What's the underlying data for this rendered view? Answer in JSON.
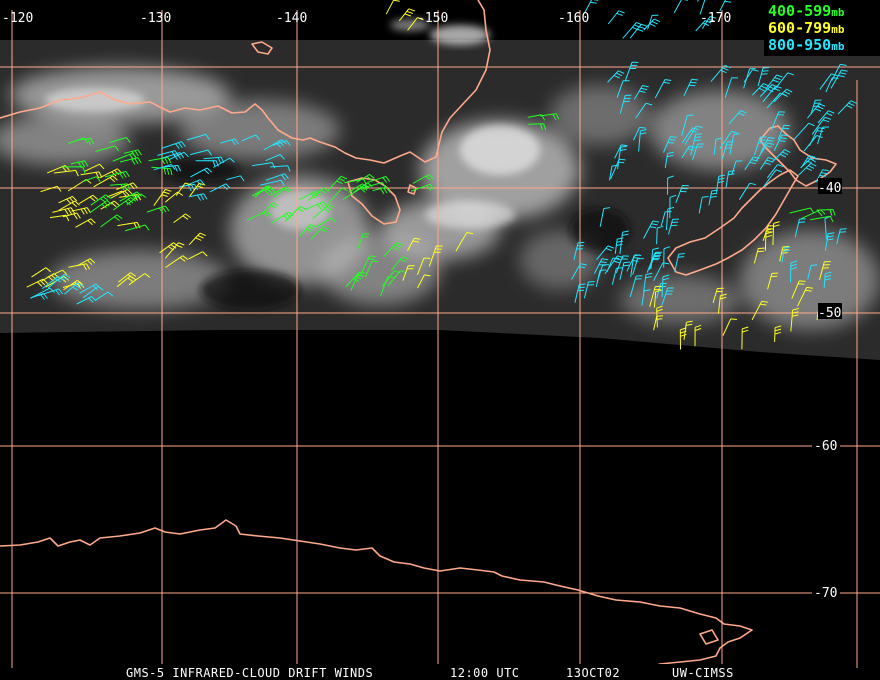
{
  "map": {
    "grid_color": "#ffa98a",
    "coast_color": "#ffa98a",
    "longitude_labels": [
      "-120",
      "-130",
      "-140",
      "-150",
      "-160",
      "-170"
    ],
    "latitude_labels": [
      "-40",
      "-50",
      "-60",
      "-70"
    ]
  },
  "legend": [
    {
      "label": "400-599",
      "unit": "mb",
      "color": "#22ff22"
    },
    {
      "label": "600-799",
      "unit": "mb",
      "color": "#ffff22"
    },
    {
      "label": "800-950",
      "unit": "mb",
      "color": "#22e5ff"
    }
  ],
  "caption": {
    "product": "GMS-5 INFRARED-CLOUD DRIFT WINDS",
    "time": "12:00 UTC",
    "date": "13OCT02",
    "source": "UW-CIMSS"
  }
}
